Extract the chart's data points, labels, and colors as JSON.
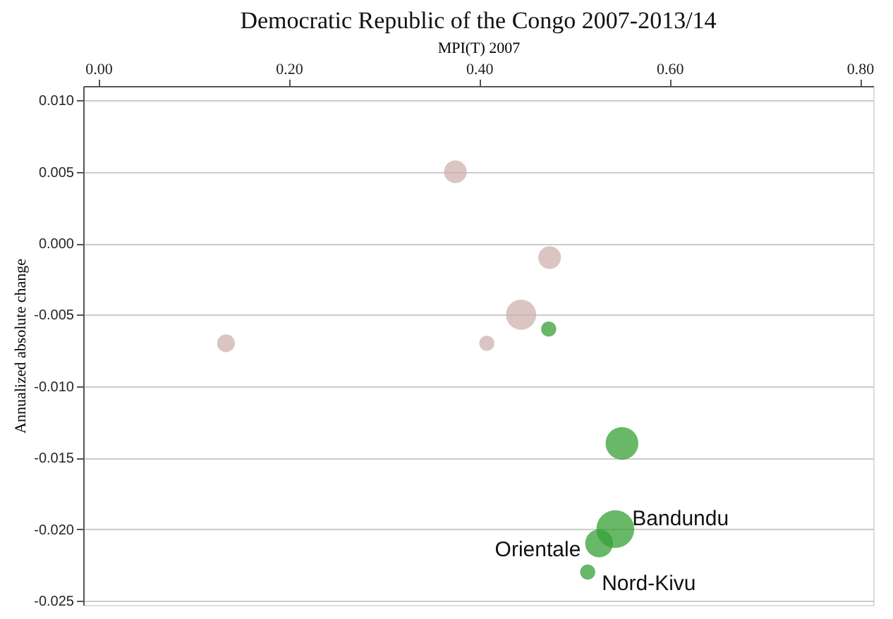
{
  "chart_data": {
    "type": "bubble",
    "title": "Democratic Republic of the Congo 2007-2013/14",
    "xlabel": "MPI(T) 2007",
    "ylabel": "Annualized absolute change",
    "xlim": [
      -0.016,
      0.814
    ],
    "ylim": [
      -0.0253,
      0.011
    ],
    "xticks": [
      {
        "value": 0,
        "label": "0.00"
      },
      {
        "value": 0.2,
        "label": "0.20"
      },
      {
        "value": 0.4,
        "label": "0.40"
      },
      {
        "value": 0.6,
        "label": "0.60"
      },
      {
        "value": 0.8,
        "label": "0.80"
      }
    ],
    "yticks": [
      {
        "value": -0.025,
        "label": "-0.025"
      },
      {
        "value": -0.02,
        "label": "-0.020"
      },
      {
        "value": -0.015,
        "label": "-0.015"
      },
      {
        "value": -0.01,
        "label": "-0.010"
      },
      {
        "value": -0.005,
        "label": "-0.005"
      },
      {
        "value": 0,
        "label": "0.000"
      },
      {
        "value": 0.005,
        "label": "0.005"
      },
      {
        "value": 0.01,
        "label": "0.010"
      }
    ],
    "grid": "y",
    "legend": false,
    "series": [
      {
        "color": "#cdb2ae",
        "x": [
          0.375,
          0.474,
          0.444,
          0.134,
          0.408
        ],
        "values": [
          0.005,
          -0.001,
          -0.005,
          -0.007,
          -0.007
        ],
        "sizes": [
          0.36,
          0.36,
          0.64,
          0.22,
          0.16
        ]
      },
      {
        "color": "#35a035",
        "x": [
          0.473,
          0.55,
          0.543,
          0.526,
          0.514
        ],
        "values": [
          -0.006,
          -0.014,
          -0.02,
          -0.021,
          -0.023
        ],
        "sizes": [
          0.16,
          0.75,
          1,
          0.54,
          0.16
        ]
      }
    ],
    "annotations": [
      {
        "text": "Bandundu",
        "x": 0.543,
        "y": -0.02
      },
      {
        "text": "Orientale",
        "x": 0.526,
        "y": -0.021
      },
      {
        "text": "Nord-Kivu",
        "x": 0.514,
        "y": -0.023
      }
    ]
  }
}
